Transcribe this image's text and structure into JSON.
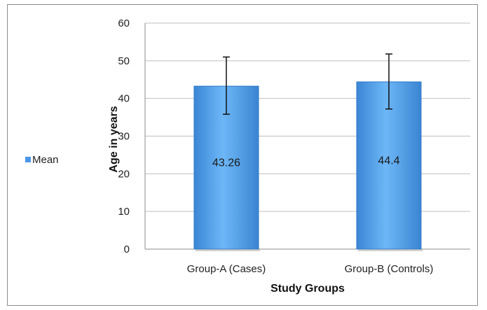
{
  "chart_data": {
    "type": "bar",
    "categories": [
      "Group-A (Cases)",
      "Group-B (Controls)"
    ],
    "series": [
      {
        "name": "Mean",
        "values": [
          43.26,
          44.4
        ],
        "error_low": [
          35.8,
          37.2
        ],
        "error_high": [
          51.0,
          51.8
        ],
        "data_labels": [
          "43.26",
          "44.4"
        ]
      }
    ],
    "xlabel": "Study Groups",
    "ylabel": "Age in years",
    "ylim": [
      0,
      60
    ],
    "yticks": [
      "0",
      "10",
      "20",
      "30",
      "40",
      "50",
      "60"
    ],
    "grid": true,
    "legend_position": "left",
    "colors": {
      "bar": "#5aa8f0",
      "bar_dark": "#2f78c8",
      "grid": "#bfbfbf"
    }
  }
}
